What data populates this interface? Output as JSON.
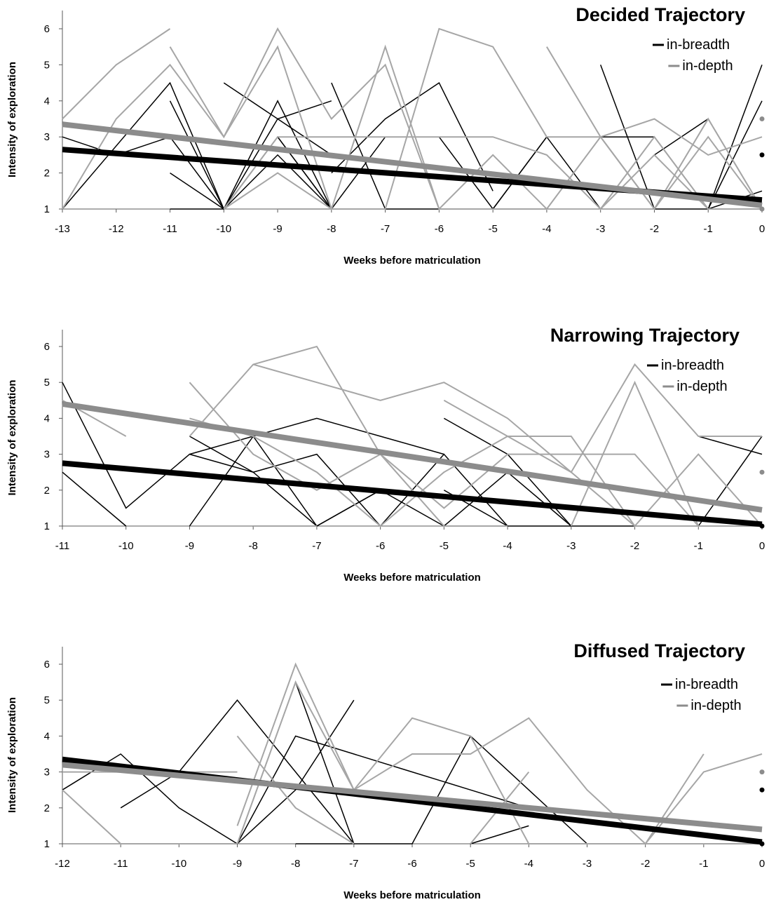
{
  "colors": {
    "breadth": "#000000",
    "depth": "#8c8c8c",
    "depth_light": "#a6a6a6",
    "axis": "#595959"
  },
  "chart_data": [
    {
      "type": "line",
      "title": "Decided Trajectory",
      "xlabel": "Weeks before matriculation",
      "ylabel": "Intensity of exploration",
      "xlim": [
        -13,
        0
      ],
      "ylim": [
        1,
        6
      ],
      "xticks": [
        "-13",
        "-12",
        "-11",
        "-10",
        "-9",
        "-8",
        "-7",
        "-6",
        "-5",
        "-4",
        "-3",
        "-2",
        "-1",
        "0"
      ],
      "yticks": [
        "1",
        "2",
        "3",
        "4",
        "5",
        "6"
      ],
      "legend": [
        "in-breadth",
        "in-depth"
      ],
      "legend_position": "top-right",
      "trend": {
        "breadth": {
          "x": [
            -13,
            0
          ],
          "y": [
            2.65,
            1.25
          ]
        },
        "depth": {
          "x": [
            -13,
            0
          ],
          "y": [
            3.35,
            1.1
          ]
        }
      },
      "points": {
        "breadth": [
          0,
          2.5
        ],
        "depth": [
          0,
          3.5
        ],
        "depth_extra": [
          0,
          1
        ]
      },
      "series": [
        {
          "group": "breadth",
          "x": [
            -13,
            -12,
            -11,
            -10,
            -9,
            -8
          ],
          "y": [
            3,
            2.5,
            3,
            1,
            3,
            1
          ]
        },
        {
          "group": "breadth",
          "x": [
            -13,
            -11,
            -10,
            -9,
            -8,
            -7
          ],
          "y": [
            1,
            4.5,
            1,
            4,
            1,
            1
          ]
        },
        {
          "group": "breadth",
          "x": [
            -11,
            -10,
            -9,
            -8
          ],
          "y": [
            4,
            1,
            2.5,
            1
          ]
        },
        {
          "group": "breadth",
          "x": [
            -11,
            -10
          ],
          "y": [
            2,
            1
          ]
        },
        {
          "group": "breadth",
          "x": [
            -11,
            -10
          ],
          "y": [
            1,
            1
          ]
        },
        {
          "group": "breadth",
          "x": [
            -10,
            -9,
            -8
          ],
          "y": [
            4.5,
            3.5,
            2.5
          ]
        },
        {
          "group": "breadth",
          "x": [
            -10,
            -9,
            -8,
            -7,
            -6,
            -5,
            -4,
            -3,
            -2,
            -1,
            0
          ],
          "y": [
            1,
            3,
            1,
            3,
            3,
            1,
            3,
            1,
            3,
            1,
            1.5
          ]
        },
        {
          "group": "breadth",
          "x": [
            -10,
            -9,
            -8
          ],
          "y": [
            1,
            3.5,
            4
          ]
        },
        {
          "group": "breadth",
          "x": [
            -8,
            -7,
            -6,
            -5,
            -4,
            -3,
            -2,
            -1,
            0
          ],
          "y": [
            4.5,
            1,
            1,
            1,
            3,
            3,
            3,
            1,
            5
          ]
        },
        {
          "group": "breadth",
          "x": [
            -8,
            -7,
            -6,
            -5
          ],
          "y": [
            2,
            3.5,
            4.5,
            1.5
          ]
        },
        {
          "group": "breadth",
          "x": [
            -3,
            -2,
            -1,
            0
          ],
          "y": [
            5,
            1,
            3.5,
            1
          ]
        },
        {
          "group": "breadth",
          "x": [
            -4,
            -3,
            -2,
            -1,
            0
          ],
          "y": [
            1,
            3,
            1,
            1,
            4
          ]
        },
        {
          "group": "breadth",
          "x": [
            -3,
            -2,
            -1,
            0
          ],
          "y": [
            1,
            2.5,
            3.5,
            1
          ]
        },
        {
          "group": "depth",
          "x": [
            -13,
            -12,
            -11
          ],
          "y": [
            3.5,
            5,
            6
          ]
        },
        {
          "group": "depth",
          "x": [
            -13,
            -12,
            -11,
            -10,
            -9,
            -8,
            -7
          ],
          "y": [
            1,
            3.5,
            5,
            3,
            5.5,
            1,
            1
          ]
        },
        {
          "group": "depth",
          "x": [
            -11,
            -10,
            -9,
            -8,
            -7,
            -6,
            -5,
            -4
          ],
          "y": [
            5.5,
            3,
            6,
            3.5,
            5,
            1,
            2.5,
            1
          ]
        },
        {
          "group": "depth",
          "x": [
            -10,
            -9,
            -8,
            -7,
            -6,
            -5,
            -4,
            -3,
            -2,
            -1,
            0
          ],
          "y": [
            1,
            3,
            3,
            3,
            3,
            3,
            2.5,
            1,
            3,
            1,
            1
          ]
        },
        {
          "group": "depth",
          "x": [
            -9,
            -8,
            -7,
            -6,
            -5,
            -4,
            -3,
            -2,
            -1,
            0
          ],
          "y": [
            1,
            1,
            1,
            6,
            5.5,
            3,
            3,
            3.5,
            2.5,
            3
          ]
        },
        {
          "group": "depth",
          "x": [
            -10,
            -9,
            -8,
            -7,
            -6,
            -5,
            -4,
            -3,
            -2,
            -1,
            0
          ],
          "y": [
            1,
            2,
            1,
            5.5,
            1,
            1,
            1,
            3,
            1,
            3.5,
            1
          ]
        },
        {
          "group": "depth",
          "x": [
            -4,
            -3,
            -2,
            -1,
            0
          ],
          "y": [
            5.5,
            3,
            1,
            3,
            1
          ]
        },
        {
          "group": "depth",
          "x": [
            -3,
            -2,
            -1,
            0
          ],
          "y": [
            1,
            2.5,
            1,
            1
          ]
        }
      ]
    },
    {
      "type": "line",
      "title": "Narrowing Trajectory",
      "xlabel": "Weeks before matriculation",
      "ylabel": "Intensity of exploration",
      "xlim": [
        -11,
        0
      ],
      "ylim": [
        1,
        6
      ],
      "xticks": [
        "-11",
        "-10",
        "-9",
        "-8",
        "-7",
        "-6",
        "-5",
        "-4",
        "-3",
        "-2",
        "-1",
        "0"
      ],
      "yticks": [
        "1",
        "2",
        "3",
        "4",
        "5",
        "6"
      ],
      "legend": [
        "in-breadth",
        "in-depth"
      ],
      "legend_position": "top-right",
      "trend": {
        "breadth": {
          "x": [
            -11,
            0
          ],
          "y": [
            2.75,
            1.05
          ]
        },
        "depth": {
          "x": [
            -11,
            0
          ],
          "y": [
            4.4,
            1.45
          ]
        }
      },
      "points": {
        "breadth": [
          0,
          1
        ],
        "depth": [
          0,
          2.5
        ]
      },
      "series": [
        {
          "group": "breadth",
          "x": [
            -11,
            -10,
            -9,
            -8,
            -7,
            -6,
            -5,
            -4,
            -3,
            -2,
            -1,
            0
          ],
          "y": [
            5,
            1.5,
            3,
            2.5,
            3,
            1,
            3,
            1,
            1,
            1,
            1,
            1
          ]
        },
        {
          "group": "breadth",
          "x": [
            -11,
            -10
          ],
          "y": [
            2.5,
            1
          ]
        },
        {
          "group": "breadth",
          "x": [
            -9,
            -8,
            -7,
            -6,
            -5
          ],
          "y": [
            3,
            3.5,
            4,
            3.5,
            3
          ]
        },
        {
          "group": "breadth",
          "x": [
            -9,
            -8,
            -7,
            -6,
            -5,
            -4,
            -3
          ],
          "y": [
            3.5,
            2.5,
            1,
            2,
            1,
            2.5,
            1
          ]
        },
        {
          "group": "breadth",
          "x": [
            -9,
            -8,
            -7,
            -6
          ],
          "y": [
            1,
            3.5,
            1,
            2
          ]
        },
        {
          "group": "breadth",
          "x": [
            -5,
            -4,
            -3
          ],
          "y": [
            4,
            3,
            1
          ]
        },
        {
          "group": "breadth",
          "x": [
            -5,
            -4
          ],
          "y": [
            2,
            1
          ]
        },
        {
          "group": "breadth",
          "x": [
            -1,
            0
          ],
          "y": [
            3.5,
            3
          ]
        },
        {
          "group": "breadth",
          "x": [
            -1,
            0
          ],
          "y": [
            1,
            3.5
          ]
        },
        {
          "group": "depth",
          "x": [
            -11,
            -10
          ],
          "y": [
            4.5,
            3.5
          ]
        },
        {
          "group": "depth",
          "x": [
            -9,
            -8,
            -7,
            -6,
            -5,
            -4,
            -3,
            -2,
            -1,
            0
          ],
          "y": [
            5,
            3,
            2,
            3,
            1.5,
            3,
            3,
            3,
            1,
            1
          ]
        },
        {
          "group": "depth",
          "x": [
            -9,
            -8,
            -7,
            -6,
            -5,
            -4,
            -3
          ],
          "y": [
            4,
            3.5,
            2.5,
            1,
            2.5,
            3.5,
            3.5
          ]
        },
        {
          "group": "depth",
          "x": [
            -9,
            -8,
            -7,
            -6,
            -5,
            -4
          ],
          "y": [
            3.5,
            5.5,
            6,
            3,
            1,
            1
          ]
        },
        {
          "group": "depth",
          "x": [
            -8,
            -7,
            -6,
            -5,
            -4,
            -3,
            -2,
            -1,
            0
          ],
          "y": [
            5.5,
            5,
            4.5,
            5,
            4,
            2.5,
            5.5,
            3.5,
            3.5
          ]
        },
        {
          "group": "depth",
          "x": [
            -5,
            -4,
            -3,
            -2,
            -1,
            0
          ],
          "y": [
            4.5,
            3.5,
            2.5,
            1,
            1,
            1
          ]
        },
        {
          "group": "depth",
          "x": [
            -4,
            -3,
            -2,
            -1,
            0
          ],
          "y": [
            3.5,
            3.5,
            1,
            3,
            1
          ]
        },
        {
          "group": "depth",
          "x": [
            -3,
            -2,
            -1
          ],
          "y": [
            1,
            5,
            1
          ]
        },
        {
          "group": "depth",
          "x": [
            -8,
            -7
          ],
          "y": [
            1,
            1
          ]
        }
      ]
    },
    {
      "type": "line",
      "title": "Diffused Trajectory",
      "xlabel": "Weeks before matriculation",
      "ylabel": "Intensity of exploration",
      "xlim": [
        -12,
        0
      ],
      "ylim": [
        1,
        6
      ],
      "xticks": [
        "-12",
        "-11",
        "-10",
        "-9",
        "-8",
        "-7",
        "-6",
        "-5",
        "-4",
        "-3",
        "-2",
        "-1",
        "0"
      ],
      "yticks": [
        "1",
        "2",
        "3",
        "4",
        "5",
        "6"
      ],
      "legend": [
        "in-breadth",
        "in-depth"
      ],
      "legend_position": "top-right",
      "trend": {
        "breadth": {
          "x": [
            -12,
            0
          ],
          "y": [
            3.35,
            1.05
          ]
        },
        "depth": {
          "x": [
            -12,
            0
          ],
          "y": [
            3.2,
            1.4
          ]
        }
      },
      "points": {
        "breadth": [
          0,
          2.5
        ],
        "depth": [
          0,
          3
        ],
        "breadth_extra": [
          0,
          1
        ]
      },
      "series": [
        {
          "group": "breadth",
          "x": [
            -12,
            -11,
            -10,
            -9,
            -8,
            -7,
            -6,
            -5,
            -4,
            -3
          ],
          "y": [
            2.5,
            3.5,
            2,
            1,
            5.5,
            1,
            1,
            4,
            2.5,
            1
          ]
        },
        {
          "group": "breadth",
          "x": [
            -11,
            -10,
            -9,
            -8,
            -7
          ],
          "y": [
            2,
            3,
            5,
            3,
            1
          ]
        },
        {
          "group": "breadth",
          "x": [
            -9,
            -8,
            -7,
            -6,
            -5,
            -4
          ],
          "y": [
            1,
            4,
            3.5,
            3,
            2.5,
            2
          ]
        },
        {
          "group": "breadth",
          "x": [
            -9,
            -8,
            -7
          ],
          "y": [
            1,
            2.5,
            5
          ]
        },
        {
          "group": "breadth",
          "x": [
            -8,
            -7
          ],
          "y": [
            1,
            1
          ]
        },
        {
          "group": "breadth",
          "x": [
            -5,
            -4
          ],
          "y": [
            1,
            1.5
          ]
        },
        {
          "group": "depth",
          "x": [
            -12,
            -11,
            -10,
            -9
          ],
          "y": [
            2.5,
            1,
            1,
            1
          ]
        },
        {
          "group": "depth",
          "x": [
            -12,
            -11,
            -10,
            -9
          ],
          "y": [
            3,
            3,
            3,
            3
          ]
        },
        {
          "group": "depth",
          "x": [
            -9,
            -8,
            -7
          ],
          "y": [
            4,
            2,
            1
          ]
        },
        {
          "group": "depth",
          "x": [
            -9,
            -8,
            -7,
            -6,
            -5,
            -4,
            -3,
            -2,
            -1,
            0
          ],
          "y": [
            1.5,
            6,
            2.5,
            4.5,
            4,
            1,
            1,
            1,
            3,
            3.5
          ]
        },
        {
          "group": "depth",
          "x": [
            -9,
            -8,
            -7,
            -6,
            -5,
            -4,
            -3,
            -2,
            -1
          ],
          "y": [
            1,
            5.5,
            2.5,
            3.5,
            3.5,
            4.5,
            2.5,
            1,
            3.5
          ]
        },
        {
          "group": "depth",
          "x": [
            -5,
            -4
          ],
          "y": [
            1,
            3
          ]
        },
        {
          "group": "depth",
          "x": [
            -3,
            -2,
            -1,
            0
          ],
          "y": [
            1,
            1,
            1,
            1
          ]
        }
      ]
    }
  ]
}
